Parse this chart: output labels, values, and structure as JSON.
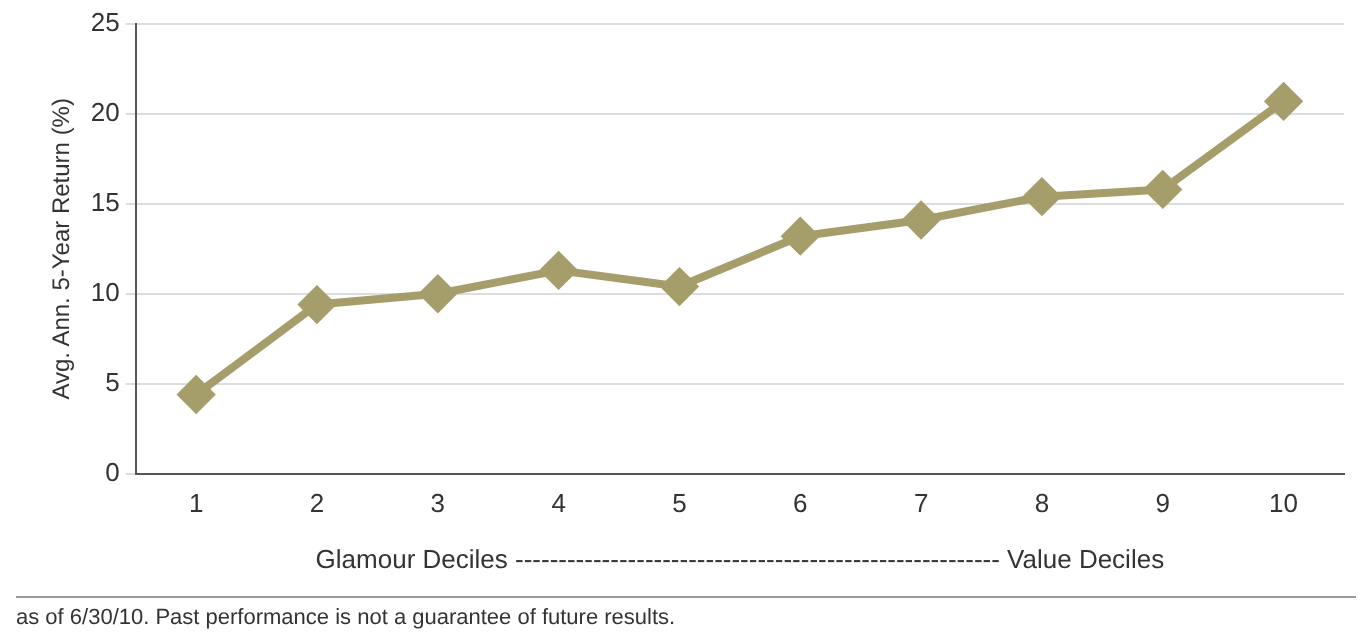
{
  "chart_data": {
    "type": "line",
    "xlabel": "Glamour Deciles -------------------------------------------------------- Value Deciles",
    "ylabel": "Avg. Ann. 5-Year Return (%)",
    "categories": [
      "1",
      "2",
      "3",
      "4",
      "5",
      "6",
      "7",
      "8",
      "9",
      "10"
    ],
    "series": [
      {
        "color": "#a59d6a",
        "values": [
          4.4,
          9.4,
          10.0,
          11.3,
          10.4,
          13.2,
          14.1,
          15.4,
          15.8,
          20.7
        ]
      }
    ],
    "ylim": [
      0,
      25
    ],
    "yticks": [
      0,
      5,
      10,
      15,
      20,
      25
    ],
    "grid": "y",
    "legend": false,
    "marker": "diamond",
    "line_style": "solid",
    "annotations": [
      "as of 6/30/10. Past performance is not a guarantee of future results."
    ]
  }
}
